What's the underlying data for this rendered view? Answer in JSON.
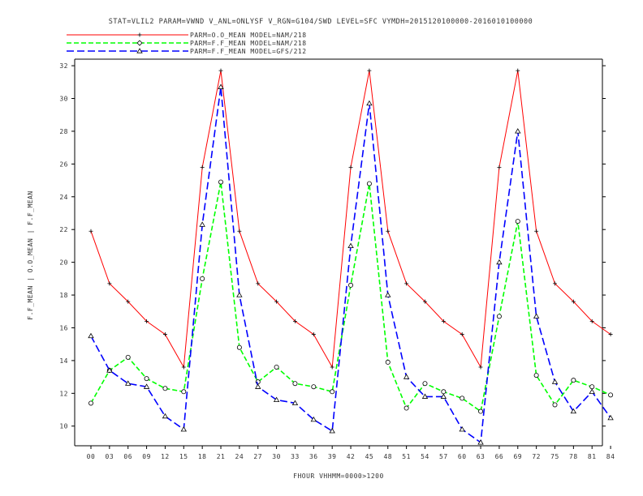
{
  "chart_data": {
    "type": "line",
    "title": "STAT=VLIL2 PARAM=VWND V_ANL=ONLYSF V_RGN=G104/SWD LEVEL=SFC VYMDH=2015120100000-2016010100000",
    "xlabel": "FHOUR VHHMM=0000>1200",
    "ylabel": "F.F_MEAN | O.O_MEAN | F.F_MEAN",
    "ylim": [
      8.8,
      32.4
    ],
    "yticks": [
      10,
      12,
      14,
      16,
      18,
      20,
      22,
      24,
      26,
      28,
      30,
      32
    ],
    "grid": false,
    "legend_position": "top-left",
    "categories": [
      "00",
      "03",
      "06",
      "09",
      "12",
      "15",
      "18",
      "21",
      "24",
      "27",
      "30",
      "33",
      "36",
      "39",
      "42",
      "45",
      "48",
      "51",
      "54",
      "57",
      "60",
      "63",
      "66",
      "69",
      "72",
      "75",
      "78",
      "81",
      "84"
    ],
    "series": [
      {
        "name": "PARM=O.O_MEAN MODEL=NAM/218",
        "color": "#ff0000",
        "dash": "solid",
        "marker": "plus",
        "values": [
          21.9,
          18.7,
          17.6,
          16.4,
          15.6,
          13.6,
          25.8,
          31.7,
          21.9,
          18.7,
          17.6,
          16.4,
          15.6,
          13.6,
          25.8,
          31.7,
          21.9,
          18.7,
          17.6,
          16.4,
          15.6,
          13.6,
          25.8,
          31.7,
          21.9,
          18.7,
          17.6,
          16.4,
          15.6
        ]
      },
      {
        "name": "PARM=F.F_MEAN MODEL=NAM/218",
        "color": "#00ff00",
        "dash": "dashed",
        "marker": "circle",
        "values": [
          11.4,
          13.4,
          14.2,
          12.9,
          12.3,
          12.1,
          19.0,
          24.9,
          14.8,
          12.7,
          13.6,
          12.6,
          12.4,
          12.1,
          18.6,
          24.8,
          13.9,
          11.1,
          12.6,
          12.1,
          11.7,
          10.9,
          16.7,
          22.5,
          13.1,
          11.3,
          12.8,
          12.4,
          11.9
        ]
      },
      {
        "name": "PARM=F.F_MEAN MODEL=GFS/212",
        "color": "#0000ff",
        "dash": "dashed",
        "marker": "triangle",
        "values": [
          15.5,
          13.4,
          12.6,
          12.4,
          10.6,
          9.8,
          22.3,
          30.7,
          18.0,
          12.4,
          11.6,
          11.4,
          10.4,
          9.7,
          21.0,
          29.7,
          18.0,
          13.0,
          11.8,
          11.8,
          9.8,
          9.0,
          20.0,
          28.0,
          16.7,
          12.7,
          10.9,
          12.1,
          10.5
        ]
      }
    ]
  }
}
